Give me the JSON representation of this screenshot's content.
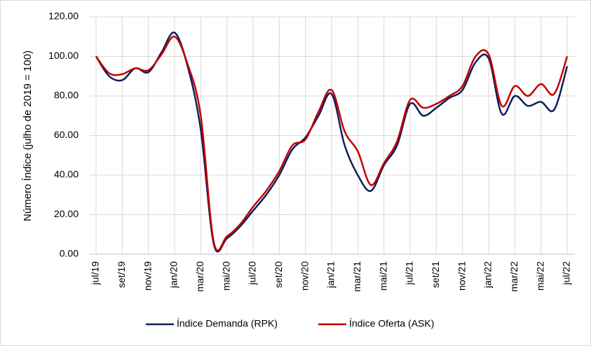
{
  "chart_data": {
    "type": "line",
    "y_label": "Número Índice (julho de 2019 = 100)",
    "categories": [
      "jul/19",
      null,
      "set/19",
      null,
      "nov/19",
      null,
      "jan/20",
      null,
      "mar/20",
      null,
      "mai/20",
      null,
      "jul/20",
      null,
      "set/20",
      null,
      "nov/20",
      null,
      "jan/21",
      null,
      "mar/21",
      null,
      "mai/21",
      null,
      "jul/21",
      null,
      "set/21",
      null,
      "nov/21",
      null,
      "jan/22",
      null,
      "mar/22",
      null,
      "mai/22",
      null,
      "jul/22"
    ],
    "series": [
      {
        "name": "Índice Demanda (RPK)",
        "color": "#0d1f5c",
        "values": [
          100,
          90,
          88,
          94,
          92,
          102,
          112,
          95,
          63,
          5,
          8,
          14,
          22,
          30,
          40,
          53,
          59,
          70,
          81,
          55,
          40,
          32,
          45,
          55,
          76,
          70,
          74,
          79,
          83,
          97,
          99,
          71,
          80,
          75,
          77,
          73,
          95
        ]
      },
      {
        "name": "Índice Oferta (ASK)",
        "color": "#c00000",
        "values": [
          100,
          91.5,
          91,
          94,
          93,
          101,
          110,
          96,
          70,
          6,
          9,
          15,
          24,
          32,
          42,
          55,
          58,
          72,
          83,
          62,
          52,
          35,
          46,
          57,
          78,
          74,
          76,
          80,
          85,
          100,
          101,
          75,
          85,
          80,
          86,
          81,
          100
        ]
      }
    ],
    "ylim": [
      0,
      120
    ],
    "yticks": [
      {
        "value": 0,
        "label": "0.00"
      },
      {
        "value": 20,
        "label": "20.00"
      },
      {
        "value": 40,
        "label": "40.00"
      },
      {
        "value": 60,
        "label": "60.00"
      },
      {
        "value": 80,
        "label": "80.00"
      },
      {
        "value": 100,
        "label": "100.00"
      },
      {
        "value": 120,
        "label": "120.00"
      }
    ],
    "grid": true,
    "legend": "bottom"
  }
}
